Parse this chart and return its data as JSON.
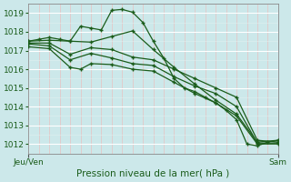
{
  "title": "Pression niveau de la mer( hPa )",
  "xlim": [
    0,
    48
  ],
  "ylim": [
    1011.5,
    1019.5
  ],
  "yticks": [
    1012,
    1013,
    1014,
    1015,
    1016,
    1017,
    1018,
    1019
  ],
  "xtick_positions": [
    0,
    48
  ],
  "xtick_labels": [
    "Jeu/Ven",
    "Sam"
  ],
  "bg_color": "#cce8ea",
  "line_color": "#1a5c1a",
  "marker": "+",
  "series": [
    [
      0,
      1017.5,
      2,
      1017.6,
      4,
      1017.7,
      6,
      1017.6,
      8,
      1017.5,
      10,
      1018.3,
      12,
      1018.2,
      14,
      1018.1,
      16,
      1019.15,
      18,
      1019.2,
      20,
      1019.05,
      22,
      1018.5,
      24,
      1017.5,
      26,
      1016.6,
      28,
      1015.5,
      30,
      1015.0,
      32,
      1014.8,
      34,
      1014.5,
      36,
      1014.2,
      38,
      1013.8,
      40,
      1013.3,
      42,
      1012.0,
      44,
      1011.9,
      46,
      1012.1,
      48,
      1012.2
    ],
    [
      0,
      1017.5,
      4,
      1017.55,
      8,
      1017.5,
      12,
      1017.45,
      16,
      1017.75,
      20,
      1018.05,
      24,
      1017.05,
      28,
      1016.1,
      32,
      1015.2,
      36,
      1014.35,
      40,
      1013.6,
      44,
      1012.1,
      48,
      1012.2
    ],
    [
      0,
      1017.4,
      4,
      1017.4,
      8,
      1016.8,
      12,
      1017.15,
      16,
      1017.05,
      20,
      1016.65,
      24,
      1016.5,
      28,
      1016.0,
      32,
      1015.5,
      36,
      1015.0,
      40,
      1014.5,
      44,
      1012.2,
      48,
      1012.1
    ],
    [
      0,
      1017.35,
      4,
      1017.25,
      8,
      1016.5,
      12,
      1016.85,
      16,
      1016.6,
      20,
      1016.3,
      24,
      1016.2,
      28,
      1015.6,
      32,
      1015.1,
      36,
      1014.7,
      40,
      1014.0,
      44,
      1012.05,
      48,
      1012.05
    ],
    [
      0,
      1017.2,
      4,
      1017.1,
      8,
      1016.1,
      10,
      1016.0,
      12,
      1016.3,
      16,
      1016.25,
      20,
      1016.0,
      24,
      1015.9,
      28,
      1015.3,
      32,
      1014.7,
      36,
      1014.2,
      40,
      1013.5,
      44,
      1012.0,
      48,
      1012.0
    ]
  ]
}
